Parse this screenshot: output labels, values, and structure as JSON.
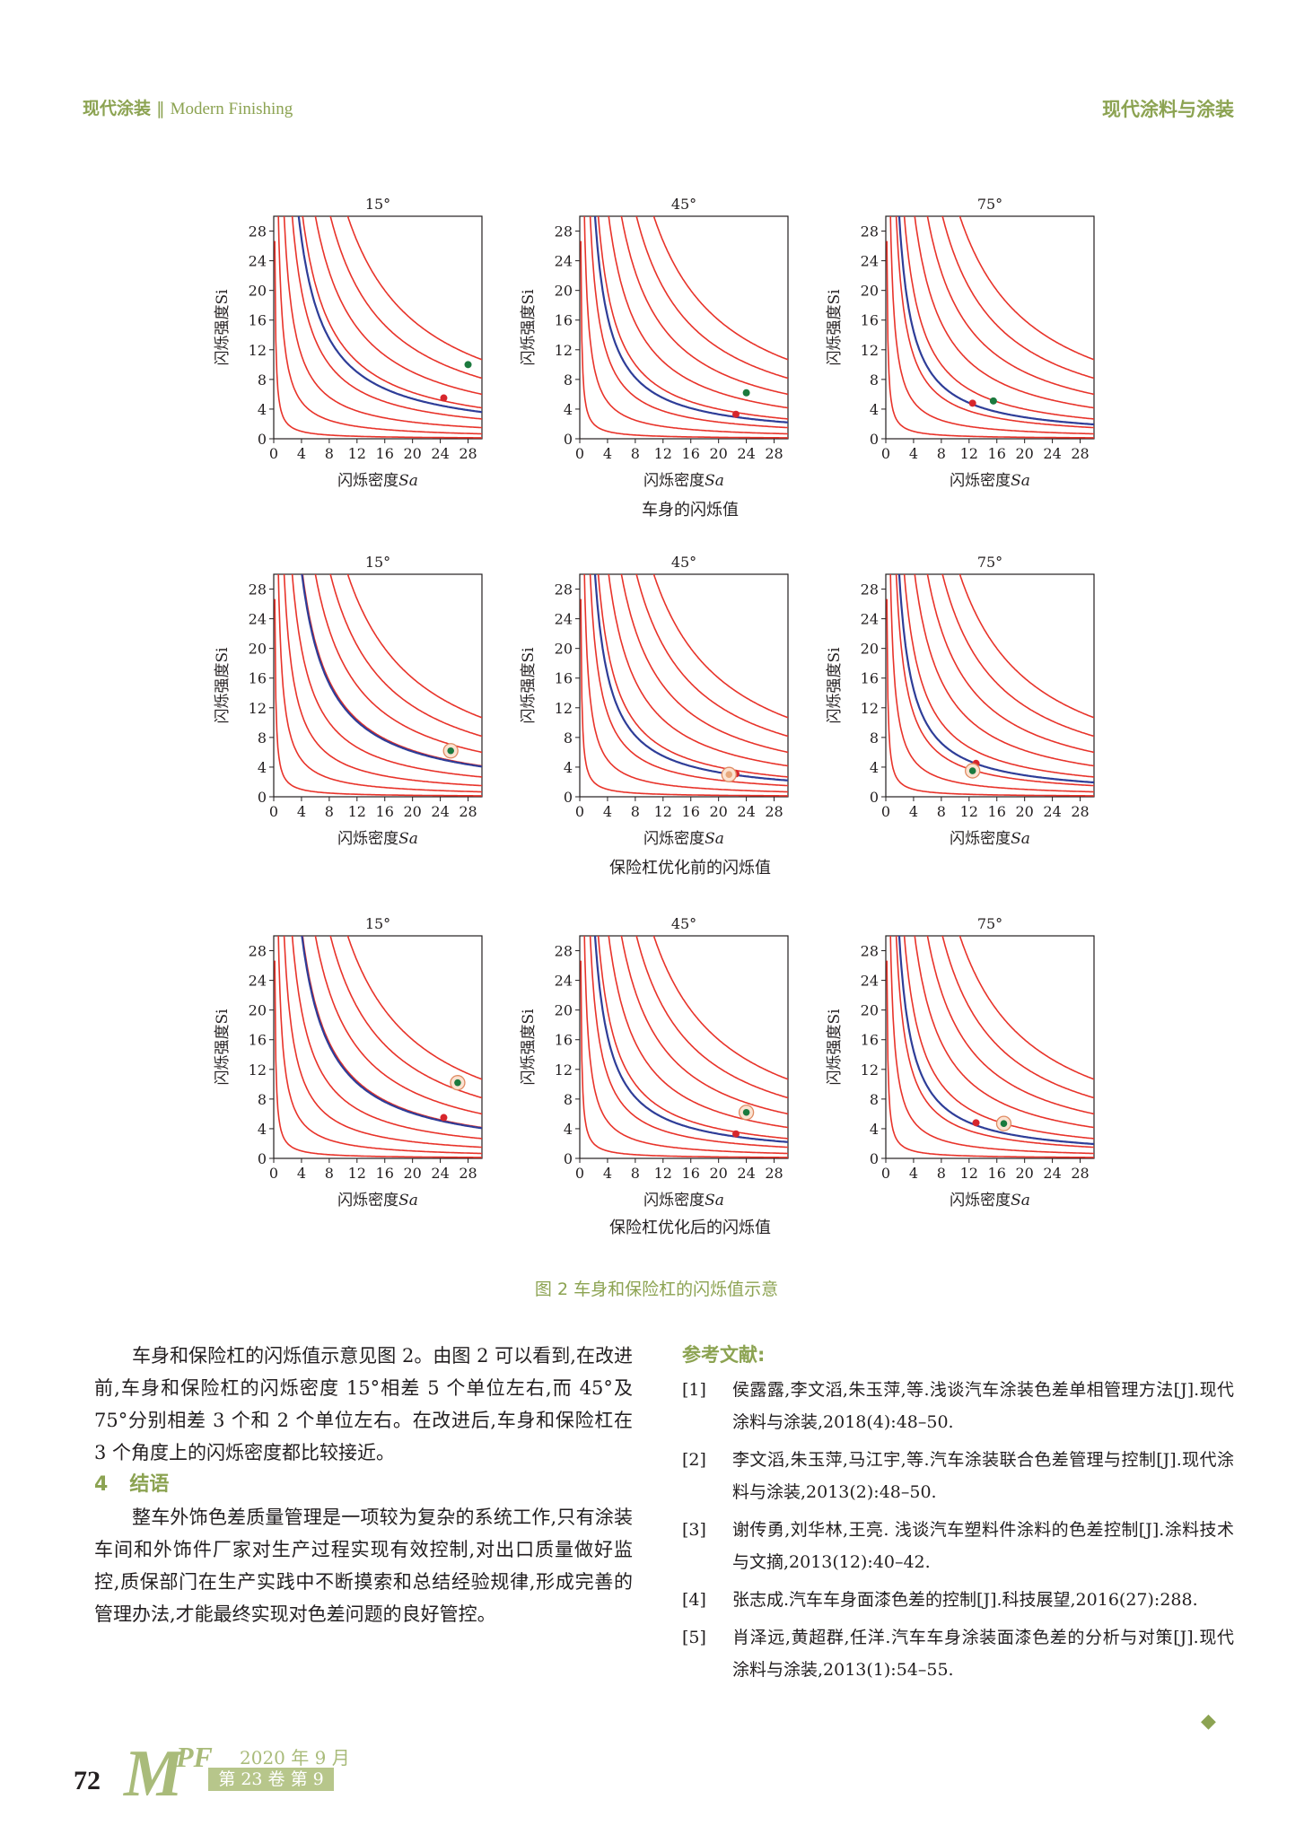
{
  "header": {
    "journal_cn": "现代涂装",
    "separator": "‖",
    "journal_en": "Modern Finishing",
    "right": "现代涂料与涂装"
  },
  "figure": {
    "caption": "图 2 车身和保险杠的闪烁值示意",
    "row_titles": [
      "车身的闪烁值",
      "保险杠优化前的闪烁值",
      "保险杠优化后的闪烁值"
    ],
    "panel_titles": [
      "15°",
      "45°",
      "75°"
    ],
    "xlabel_prefix": "闪烁密度",
    "xlabel_var": "Sa",
    "ylabel": "闪烁强度Si",
    "ticks": [
      "0",
      "4",
      "8",
      "12",
      "16",
      "20",
      "24",
      "28"
    ]
  },
  "chart_data": [
    {
      "type": "scatter",
      "row": "车身的闪烁值",
      "panel": "15°",
      "xlim": [
        0,
        30
      ],
      "ylim": [
        0,
        30
      ],
      "grid": false,
      "ref_curve_k": [
        4,
        20,
        45,
        80,
        125,
        180,
        245,
        320
      ],
      "blue_curve_k": 108,
      "points": [
        {
          "x": 24.5,
          "y": 5.5,
          "color": "#d7262c"
        },
        {
          "x": 28,
          "y": 10,
          "color": "#1b7a3e"
        }
      ]
    },
    {
      "type": "scatter",
      "row": "车身的闪烁值",
      "panel": "45°",
      "xlim": [
        0,
        30
      ],
      "ylim": [
        0,
        30
      ],
      "grid": false,
      "ref_curve_k": [
        4,
        20,
        45,
        80,
        125,
        180,
        245,
        320
      ],
      "blue_curve_k": 66,
      "points": [
        {
          "x": 22.5,
          "y": 3.3,
          "color": "#d7262c"
        },
        {
          "x": 24,
          "y": 6.2,
          "color": "#1b7a3e"
        }
      ]
    },
    {
      "type": "scatter",
      "row": "车身的闪烁值",
      "panel": "75°",
      "xlim": [
        0,
        30
      ],
      "ylim": [
        0,
        30
      ],
      "grid": false,
      "ref_curve_k": [
        4,
        20,
        45,
        80,
        125,
        180,
        245,
        320
      ],
      "blue_curve_k": 58,
      "points": [
        {
          "x": 12.5,
          "y": 4.8,
          "color": "#d7262c"
        },
        {
          "x": 15.5,
          "y": 5.1,
          "color": "#1b7a3e"
        }
      ]
    },
    {
      "type": "scatter",
      "row": "保险杠优化前的闪烁值",
      "panel": "15°",
      "xlim": [
        0,
        30
      ],
      "ylim": [
        0,
        30
      ],
      "grid": false,
      "ref_curve_k": [
        4,
        20,
        45,
        80,
        125,
        180,
        245,
        320
      ],
      "blue_curve_k": 122,
      "points": [
        {
          "x": 25.5,
          "y": 6.2,
          "color": "#1b7a3e",
          "circled": true
        }
      ]
    },
    {
      "type": "scatter",
      "row": "保险杠优化前的闪烁值",
      "panel": "45°",
      "xlim": [
        0,
        30
      ],
      "ylim": [
        0,
        30
      ],
      "grid": false,
      "ref_curve_k": [
        4,
        20,
        45,
        80,
        125,
        180,
        245,
        320
      ],
      "blue_curve_k": 66,
      "points": [
        {
          "x": 22.5,
          "y": 3.1,
          "color": "#d7262c"
        },
        {
          "x": 21.5,
          "y": 3.0,
          "color": "#e8a97d",
          "circled": true
        }
      ]
    },
    {
      "type": "scatter",
      "row": "保险杠优化前的闪烁值",
      "panel": "75°",
      "xlim": [
        0,
        30
      ],
      "ylim": [
        0,
        30
      ],
      "grid": false,
      "ref_curve_k": [
        4,
        20,
        45,
        80,
        125,
        180,
        245,
        320
      ],
      "blue_curve_k": 58,
      "points": [
        {
          "x": 13,
          "y": 4.5,
          "color": "#d7262c"
        },
        {
          "x": 12.5,
          "y": 3.5,
          "color": "#1b7a3e",
          "circled": true
        }
      ]
    },
    {
      "type": "scatter",
      "row": "保险杠优化后的闪烁值",
      "panel": "15°",
      "xlim": [
        0,
        30
      ],
      "ylim": [
        0,
        30
      ],
      "grid": false,
      "ref_curve_k": [
        4,
        20,
        45,
        80,
        125,
        180,
        245,
        320
      ],
      "blue_curve_k": 122,
      "points": [
        {
          "x": 24.5,
          "y": 5.5,
          "color": "#d7262c"
        },
        {
          "x": 26.5,
          "y": 10.2,
          "color": "#1b7a3e",
          "circled": true
        }
      ]
    },
    {
      "type": "scatter",
      "row": "保险杠优化后的闪烁值",
      "panel": "45°",
      "xlim": [
        0,
        30
      ],
      "ylim": [
        0,
        30
      ],
      "grid": false,
      "ref_curve_k": [
        4,
        20,
        45,
        80,
        125,
        180,
        245,
        320
      ],
      "blue_curve_k": 66,
      "points": [
        {
          "x": 22.5,
          "y": 3.3,
          "color": "#d7262c"
        },
        {
          "x": 24,
          "y": 6.2,
          "color": "#1b7a3e",
          "circled": true
        }
      ]
    },
    {
      "type": "scatter",
      "row": "保险杠优化后的闪烁值",
      "panel": "75°",
      "xlim": [
        0,
        30
      ],
      "ylim": [
        0,
        30
      ],
      "grid": false,
      "ref_curve_k": [
        4,
        20,
        45,
        80,
        125,
        180,
        245,
        320
      ],
      "blue_curve_k": 58,
      "points": [
        {
          "x": 13,
          "y": 4.8,
          "color": "#d7262c"
        },
        {
          "x": 17,
          "y": 4.7,
          "color": "#1b7a3e",
          "circled": true
        }
      ]
    }
  ],
  "colors": {
    "accent": "#8ca352",
    "curve": "#e8332a",
    "fit": "#2e3d98"
  },
  "body": {
    "para1": "车身和保险杠的闪烁值示意见图 2。由图 2 可以看到,在改进前,车身和保险杠的闪烁密度 15°相差 5 个单位左右,而 45°及 75°分别相差 3 个和 2 个单位左右。在改进后,车身和保险杠在 3 个角度上的闪烁密度都比较接近。",
    "section_num": "4",
    "section_title": "结语",
    "para2": "整车外饰色差质量管理是一项较为复杂的系统工作,只有涂装车间和外饰件厂家对生产过程实现有效控制,对出口质量做好监控,质保部门在生产实践中不断摸索和总结经验规律,形成完善的管理办法,才能最终实现对色差问题的良好管控。"
  },
  "references": {
    "title": "参考文献:",
    "items": [
      {
        "idx": "[1]",
        "text": "侯露露,李文滔,朱玉萍,等.浅谈汽车涂装色差单相管理方法[J].现代涂料与涂装,2018(4):48–50."
      },
      {
        "idx": "[2]",
        "text": "李文滔,朱玉萍,马江宇,等.汽车涂装联合色差管理与控制[J].现代涂料与涂装,2013(2):48–50."
      },
      {
        "idx": "[3]",
        "text": "谢传勇,刘华林,王亮. 浅谈汽车塑料件涂料的色差控制[J].涂料技术与文摘,2013(12):40–42."
      },
      {
        "idx": "[4]",
        "text": "张志成.汽车车身面漆色差的控制[J].科技展望,2016(27):288."
      },
      {
        "idx": "[5]",
        "text": "肖泽远,黄超群,任洋.汽车车身涂装面漆色差的分析与对策[J].现代涂料与涂装,2013(1):54–55."
      }
    ],
    "end_mark": "◆"
  },
  "footer": {
    "page_number": "72",
    "logo_m": "M",
    "logo_pf": "PF",
    "date": "2020 年 9 月",
    "volume": "第 23 卷 第 9 期"
  }
}
